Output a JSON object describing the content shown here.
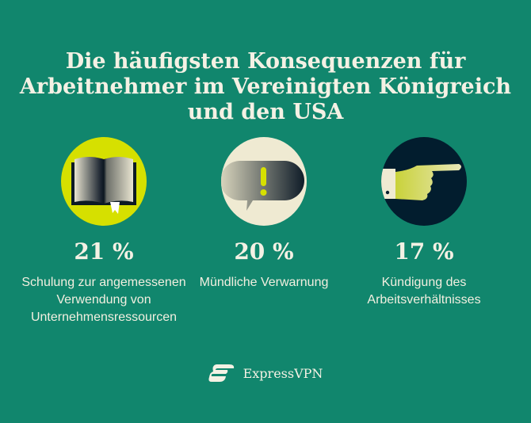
{
  "title": "Die häufigsten Konsequenzen für Arbeitnehmer im Vereinigten Königreich und den USA",
  "items": [
    {
      "value": "21 %",
      "label": "Schulung zur angemessenen Verwendung von Unternehmensressourcen",
      "icon": "book-icon",
      "circle_color": "#d6e000"
    },
    {
      "value": "20 %",
      "label": "Mündliche Verwarnung",
      "icon": "speech-bubble-exclamation-icon",
      "circle_color": "#efead2"
    },
    {
      "value": "17 %",
      "label": "Kündigung des Arbeitsverhältnisses",
      "icon": "pointing-hand-icon",
      "circle_color": "#021d2e"
    }
  ],
  "brand": {
    "name": "ExpressVPN"
  },
  "colors": {
    "background": "#11866d",
    "text": "#f4f1e4"
  }
}
